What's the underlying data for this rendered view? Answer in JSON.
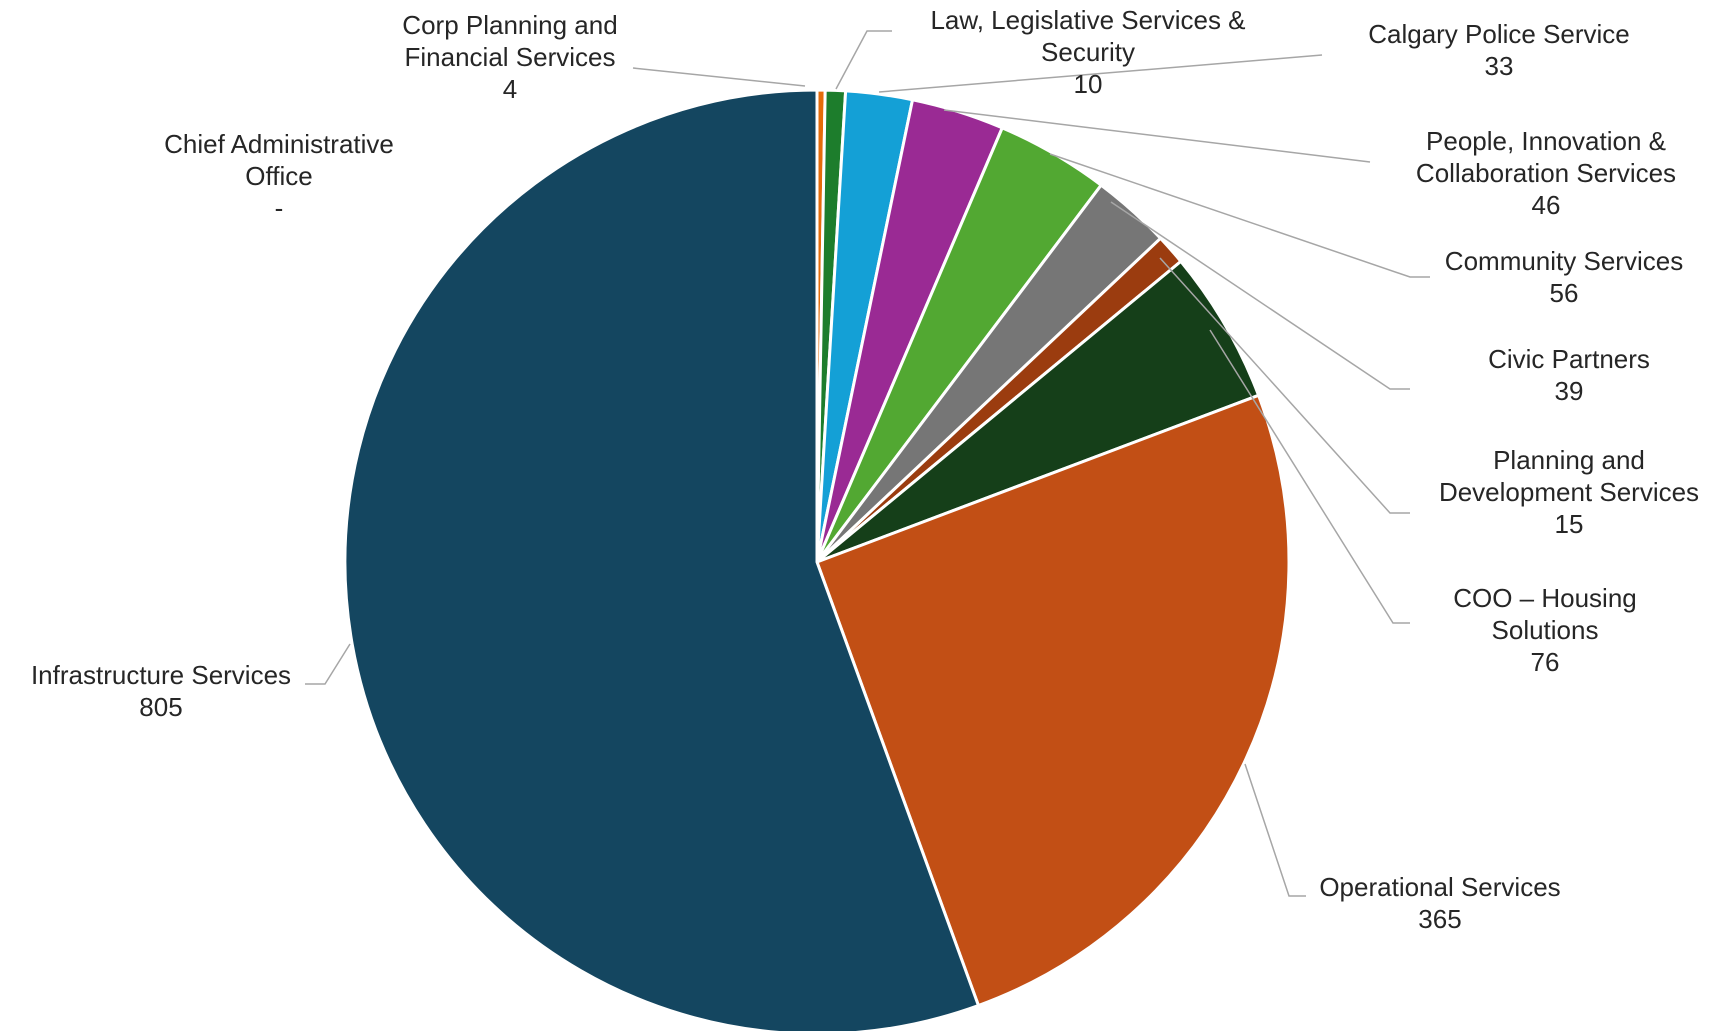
{
  "chart_data": {
    "type": "pie",
    "title": "",
    "start_angle_deg": 0,
    "direction": "clockwise",
    "slices": [
      {
        "label": [
          "Chief Administrative",
          "Office"
        ],
        "value_label": "-",
        "value": 0,
        "color": "#1f4e79"
      },
      {
        "label": [
          "Corp Planning and",
          "Financial Services"
        ],
        "value_label": "4",
        "value": 4,
        "color": "#e46c0a"
      },
      {
        "label": [
          "Law, Legislative Services &",
          "Security"
        ],
        "value_label": "10",
        "value": 10,
        "color": "#1d7d2c"
      },
      {
        "label": [
          "Calgary Police Service"
        ],
        "value_label": "33",
        "value": 33,
        "color": "#14a0d6"
      },
      {
        "label": [
          "People, Innovation &",
          "Collaboration Services"
        ],
        "value_label": "46",
        "value": 46,
        "color": "#9a2a94"
      },
      {
        "label": [
          "Community Services"
        ],
        "value_label": "56",
        "value": 56,
        "color": "#52a832"
      },
      {
        "label": [
          "Civic Partners"
        ],
        "value_label": "39",
        "value": 39,
        "color": "#767676"
      },
      {
        "label": [
          "Planning and",
          "Development Services"
        ],
        "value_label": "15",
        "value": 15,
        "color": "#9b3c0f"
      },
      {
        "label": [
          "COO – Housing",
          "Solutions"
        ],
        "value_label": "76",
        "value": 76,
        "color": "#153f19"
      },
      {
        "label": [
          "Operational Services"
        ],
        "value_label": "365",
        "value": 365,
        "color": "#c24f15"
      },
      {
        "label": [
          "Infrastructure Services"
        ],
        "value_label": "805",
        "value": 805,
        "color": "#144660"
      }
    ]
  }
}
